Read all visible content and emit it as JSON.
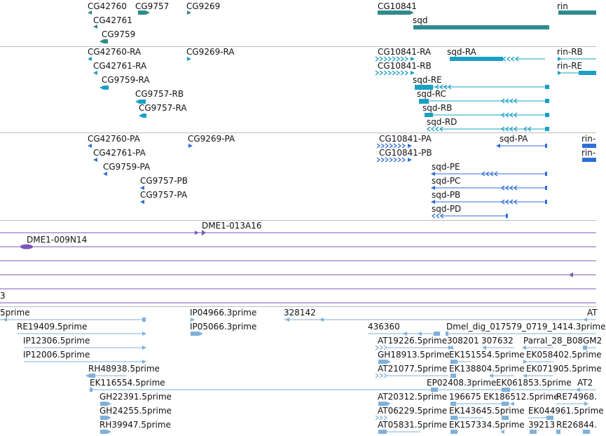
{
  "colors": {
    "gene": "#2e8b8b",
    "transcript": "#19a0c4",
    "protein": "#2f6fd6",
    "clone": "#7b56b8",
    "est": "#7fb1da",
    "separator": "#bdbdbd"
  },
  "tracks": {
    "genes": [
      "CG42760",
      "CG9757",
      "CG9269",
      "CG10841",
      "rin",
      "CG42761",
      "sqd",
      "CG9759"
    ],
    "transcripts": [
      "CG42760-RA",
      "CG9269-RA",
      "CG10841-RA",
      "sqd-RA",
      "rin-RB",
      "CG42761-RA",
      "CG10841-RB",
      "rin-RE",
      "CG9759-RA",
      "sqd-RE",
      "CG9757-RB",
      "sqd-RC",
      "CG9757-RA",
      "sqd-RB",
      "sqd-RD"
    ],
    "proteins": [
      "CG42760-PA",
      "CG9269-PA",
      "CG10841-PA",
      "sqd-PA",
      "rin-",
      "CG42761-PA",
      "CG10841-PB",
      "rin-",
      "CG9759-PA",
      "sqd-PE",
      "CG9757-PB",
      "sqd-PC",
      "CG9757-PA",
      "sqd-PB",
      "sqd-PD"
    ],
    "clones": [
      "DME1-013A16",
      "DME1-009N14",
      "3"
    ],
    "ests": [
      "5prime",
      "IP04966.3prime",
      "328142",
      "AT",
      "RE19409.5prime",
      "IP05066.3prime",
      "436360",
      "Dmel_dig_017579_0719_1414.3prime",
      "IP12306.5prime",
      "AT19226.5prime",
      "308201",
      "307632",
      "Parral_28_B08",
      "GM2",
      "IP12006.5prime",
      "GH18913.5prime",
      "EK151554.5prime",
      "EK058402.5prime",
      "RH48938.5prime",
      "AT21077.5prime",
      "EK138804.5prime",
      "EK071905.5prime",
      "EK116554.5prime",
      "EP02408.3prime",
      "EK061853.5prime",
      "AT2",
      "GH22391.5prime",
      "AT20312.5prime",
      "196675",
      "EK186512.5prime",
      "RE74968.",
      "GH24255.5prime",
      "AT06229.5prime",
      "EK143645.5prime",
      "EK044961.5prime",
      "RH39947.5prime",
      "AT05831.5prime",
      "EK157334.5prime",
      "39213",
      "RE26844."
    ]
  }
}
